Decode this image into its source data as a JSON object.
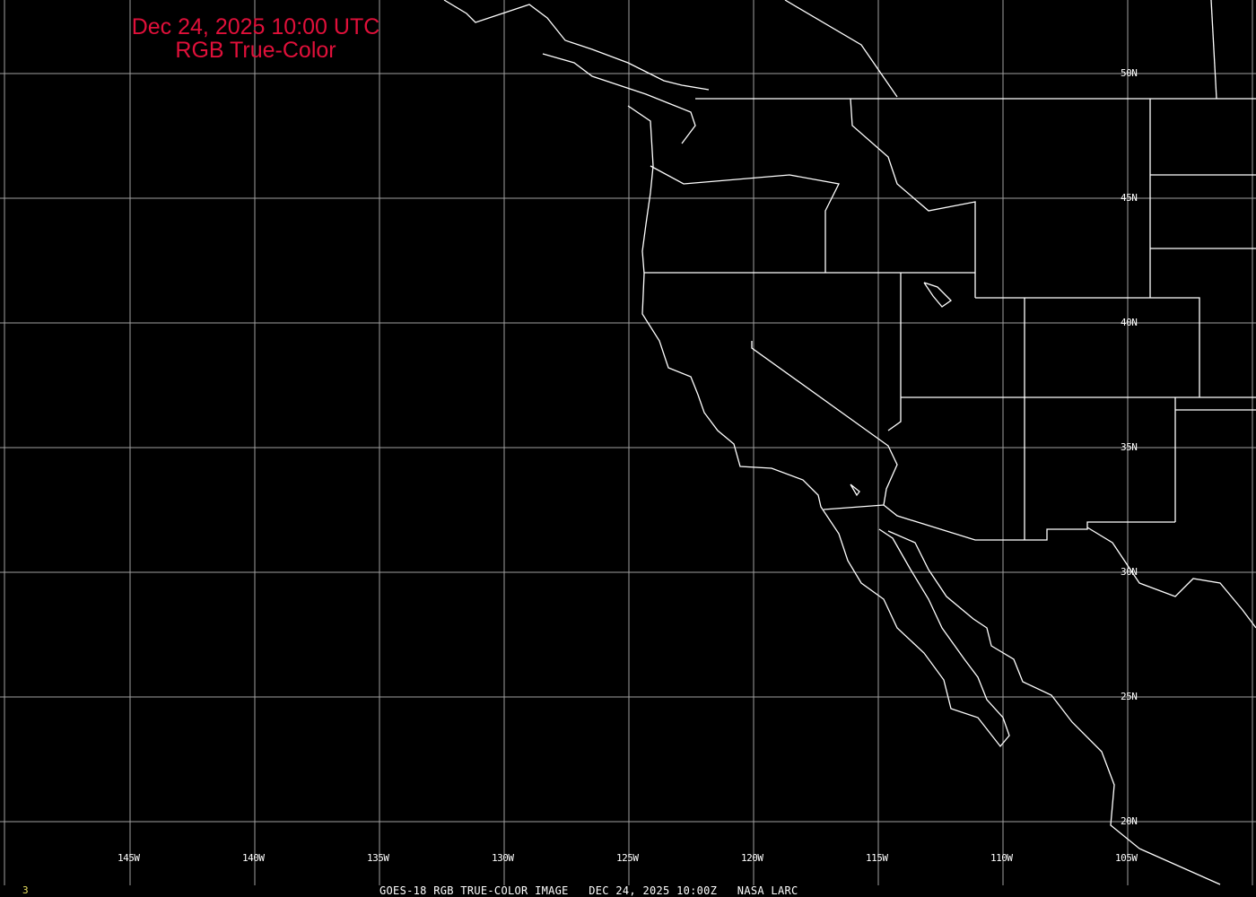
{
  "title": {
    "line1": "Dec 24, 2025 10:00 UTC",
    "line2": "RGB True-Color",
    "color": "#e0103a"
  },
  "longitude_labels": [
    "145W",
    "140W",
    "135W",
    "130W",
    "125W",
    "120W",
    "115W",
    "110W",
    "105W"
  ],
  "latitude_labels": [
    "50N",
    "45N",
    "40N",
    "35N",
    "30N",
    "25N",
    "20N"
  ],
  "footer": {
    "text": "GOES-18 RGB TRUE-COLOR IMAGE   DEC 24, 2025 10:00Z   NASA LARC",
    "frame_number": "3"
  },
  "colors": {
    "background": "#000000",
    "grid": "#a0a0a0",
    "coastline": "#ffffff",
    "frame_number": "#e8e060"
  }
}
